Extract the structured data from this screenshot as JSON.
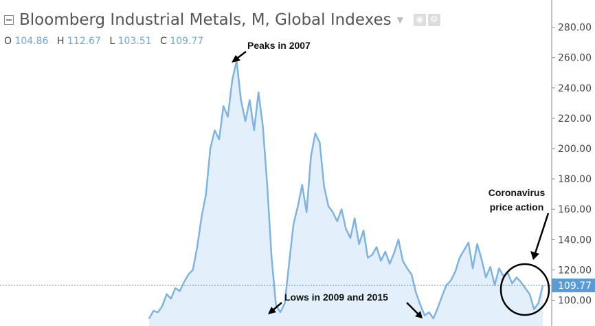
{
  "header": {
    "title": "Bloomberg Industrial Metals, M, Global Indexes",
    "ohlc": [
      {
        "label": "O",
        "value": "104.86"
      },
      {
        "label": "H",
        "value": "112.67"
      },
      {
        "label": "L",
        "value": "103.51"
      },
      {
        "label": "C",
        "value": "109.77"
      }
    ]
  },
  "annotations": {
    "peak": "Peaks in 2007",
    "lows": "Lows in 2009 and 2015",
    "covid_line1": "Coronavirus",
    "covid_line2": "price action"
  },
  "colors": {
    "line": "#7fb3e0",
    "fill": "#e3f0fb",
    "last_price_bg": "#5b9bd5",
    "axis_text": "#444444"
  },
  "chart_data": {
    "type": "area",
    "title": "Bloomberg Industrial Metals, M, Global Indexes",
    "xlabel": "",
    "ylabel": "",
    "ylim": [
      88,
      295
    ],
    "yticks": [
      100,
      120,
      140,
      160,
      180,
      200,
      220,
      240,
      260,
      280
    ],
    "ytick_labels": [
      "100.00",
      "120.00",
      "140.00",
      "160.00",
      "180.00",
      "200.00",
      "220.00",
      "240.00",
      "260.00",
      "280.00"
    ],
    "last_price": 109.77,
    "last_price_label": "109.77",
    "grid": false,
    "legend": "none",
    "x": [
      2002.6,
      2002.8,
      2003.0,
      2003.2,
      2003.4,
      2003.6,
      2003.8,
      2004.0,
      2004.2,
      2004.4,
      2004.6,
      2004.8,
      2005.0,
      2005.2,
      2005.4,
      2005.6,
      2005.8,
      2006.0,
      2006.2,
      2006.4,
      2006.6,
      2006.8,
      2007.0,
      2007.2,
      2007.4,
      2007.6,
      2007.8,
      2008.0,
      2008.2,
      2008.4,
      2008.6,
      2008.8,
      2009.0,
      2009.2,
      2009.4,
      2009.6,
      2009.8,
      2010.0,
      2010.2,
      2010.4,
      2010.6,
      2010.8,
      2011.0,
      2011.2,
      2011.4,
      2011.6,
      2011.8,
      2012.0,
      2012.2,
      2012.4,
      2012.6,
      2012.8,
      2013.0,
      2013.2,
      2013.4,
      2013.6,
      2013.8,
      2014.0,
      2014.2,
      2014.4,
      2014.6,
      2014.8,
      2015.0,
      2015.2,
      2015.4,
      2015.6,
      2015.8,
      2016.0,
      2016.2,
      2016.4,
      2016.6,
      2016.8,
      2017.0,
      2017.2,
      2017.4,
      2017.6,
      2017.8,
      2018.0,
      2018.2,
      2018.4,
      2018.6,
      2018.8,
      2019.0,
      2019.2,
      2019.4,
      2019.6,
      2019.8,
      2020.0,
      2020.2,
      2020.4,
      2020.6
    ],
    "values": [
      88,
      93,
      92,
      96,
      104,
      101,
      108,
      106,
      112,
      117,
      120,
      135,
      155,
      170,
      200,
      212,
      206,
      228,
      221,
      245,
      258,
      232,
      218,
      232,
      212,
      237,
      215,
      176,
      128,
      97,
      92,
      98,
      124,
      150,
      162,
      176,
      158,
      195,
      210,
      204,
      175,
      162,
      158,
      152,
      160,
      147,
      141,
      154,
      137,
      146,
      128,
      130,
      135,
      126,
      132,
      124,
      131,
      140,
      126,
      121,
      117,
      105,
      97,
      90,
      92,
      88,
      95,
      103,
      110,
      113,
      119,
      128,
      133,
      138,
      121,
      137,
      127,
      115,
      122,
      110,
      121,
      116,
      118,
      111,
      115,
      112,
      108,
      104,
      94,
      98,
      109.77
    ]
  }
}
